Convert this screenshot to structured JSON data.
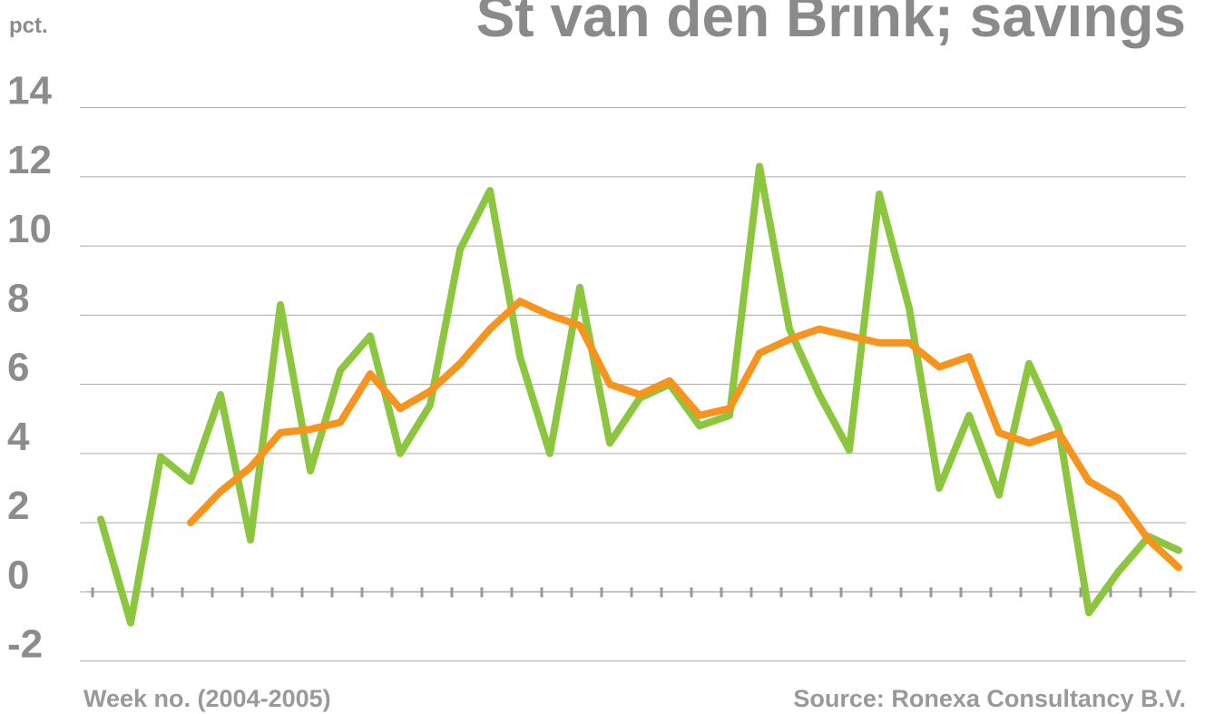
{
  "chart_data": {
    "type": "line",
    "title": "St van den Brink; savings",
    "y_label": "pct.",
    "x_label": "Week no. (2004-2005)",
    "source": "Source: Ronexa Consultancy B.V.",
    "categories": [
      null,
      null,
      null,
      null,
      null,
      null,
      null,
      null,
      null,
      null,
      null,
      null,
      null,
      null,
      null,
      null,
      null,
      null,
      null,
      null,
      null,
      null,
      null,
      null,
      null,
      null,
      null,
      null,
      null,
      null,
      null,
      null,
      null,
      null,
      null,
      null,
      null
    ],
    "series": [
      {
        "color": "#8cc63f",
        "values": [
          2.1,
          -0.9,
          3.9,
          3.2,
          5.7,
          1.5,
          8.3,
          3.5,
          6.4,
          7.4,
          4.0,
          5.4,
          9.9,
          11.6,
          6.8,
          4.0,
          8.8,
          4.3,
          5.6,
          6.0,
          4.8,
          5.1,
          12.3,
          7.6,
          5.7,
          4.1,
          11.5,
          8.2,
          3.0,
          5.1,
          2.8,
          6.6,
          4.7,
          -0.6,
          0.6,
          1.6,
          1.2
        ]
      },
      {
        "color": "#f7941d",
        "values": [
          null,
          null,
          null,
          2.0,
          2.9,
          3.6,
          4.6,
          4.7,
          4.9,
          6.3,
          5.3,
          5.8,
          6.6,
          7.6,
          8.4,
          8.0,
          7.7,
          6.0,
          5.7,
          6.1,
          5.1,
          5.3,
          6.9,
          7.3,
          7.6,
          7.4,
          7.2,
          7.2,
          6.5,
          6.8,
          4.6,
          4.3,
          4.6,
          3.2,
          2.7,
          1.5,
          0.7
        ]
      }
    ],
    "ylim": [
      -2,
      14
    ],
    "yticks": [
      -2,
      0,
      2,
      4,
      6,
      8,
      10,
      12,
      14
    ],
    "grid": true
  }
}
